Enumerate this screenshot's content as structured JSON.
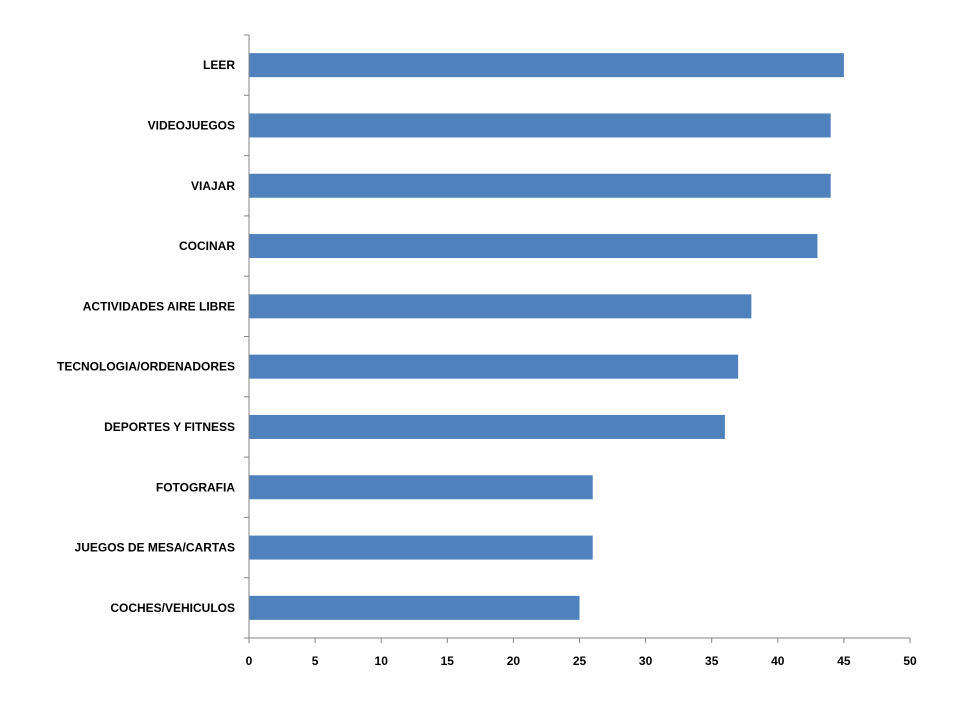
{
  "chart_data": {
    "type": "bar",
    "orientation": "horizontal",
    "categories": [
      "LEER",
      "VIDEOJUEGOS",
      "VIAJAR",
      "COCINAR",
      "ACTIVIDADES AIRE LIBRE",
      "TECNOLOGIA/ORDENADORES",
      "DEPORTES Y FITNESS",
      "FOTOGRAFIA",
      "JUEGOS DE MESA/CARTAS",
      "COCHES/VEHICULOS"
    ],
    "values": [
      45,
      44,
      44,
      43,
      38,
      37,
      36,
      26,
      26,
      25
    ],
    "xlim": [
      0,
      50
    ],
    "xticks": [
      0,
      5,
      10,
      15,
      20,
      25,
      30,
      35,
      40,
      45,
      50
    ],
    "grid": false,
    "legend": "none",
    "bar_color": "#4F81BD",
    "axis_color": "#868686"
  }
}
